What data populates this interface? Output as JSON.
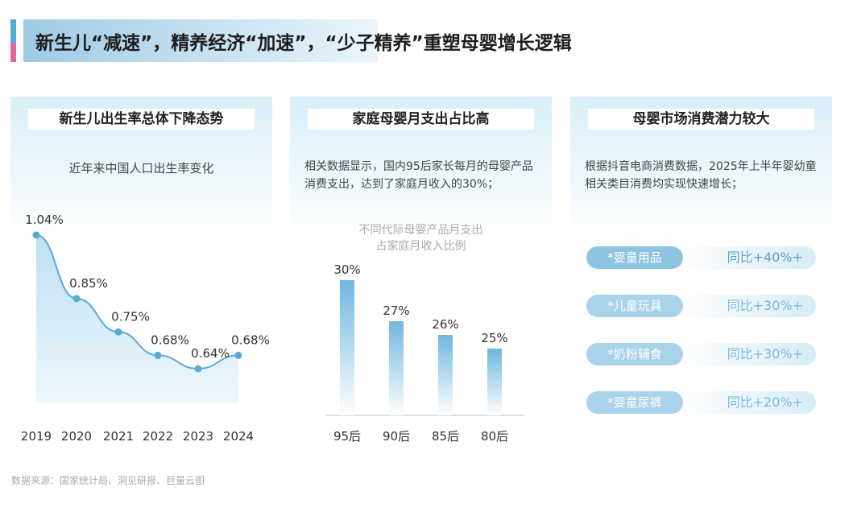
{
  "title": "新生儿“减速”，精养经济“加速”，“少子精养”重塑母婴增长逻辑",
  "panels": [
    {
      "title": "新生儿出生率总体下降态势",
      "subtitle": "近年来中国人口出生率变化"
    },
    {
      "title": "家庭母婴月支出占比高",
      "text": "相关数据显示，国内95后家长每月的母婴产品消费支出，达到了家庭月收入的30%；",
      "chart_title_1": "不同代际母婴产品月支出",
      "chart_title_2": "占家庭月收入比例"
    },
    {
      "title": "母婴市场消费潜力较大",
      "text": "根据抖音电商消费数据，2025年上半年婴幼童相关类目消费均实现快速增长；",
      "items": [
        {
          "label": "*婴童用品",
          "value": "同比+40%+"
        },
        {
          "label": "*儿童玩具",
          "value": "同比+30%+"
        },
        {
          "label": "*奶粉辅食",
          "value": "同比+30%+"
        },
        {
          "label": "*婴童尿裤",
          "value": "同比+20%+"
        }
      ]
    }
  ],
  "source": "数据来源：国家统计局、洞见研报、巨量云图",
  "chart_data": [
    {
      "type": "line",
      "title": "近年来中国人口出生率变化",
      "categories": [
        "2019",
        "2020",
        "2021",
        "2022",
        "2023",
        "2024"
      ],
      "values": [
        1.04,
        0.85,
        0.75,
        0.68,
        0.64,
        0.68
      ],
      "labels": [
        "1.04%",
        "0.85%",
        "0.75%",
        "0.68%",
        "0.64%",
        "0.68%"
      ],
      "color": "#5aa9d6"
    },
    {
      "type": "bar",
      "title": "不同代际母婴产品月支出占家庭月收入比例",
      "categories": [
        "95后",
        "90后",
        "85后",
        "80后"
      ],
      "values": [
        30,
        27,
        26,
        25
      ],
      "labels": [
        "30%",
        "27%",
        "26%",
        "25%"
      ],
      "color": "#6fb7de"
    }
  ]
}
